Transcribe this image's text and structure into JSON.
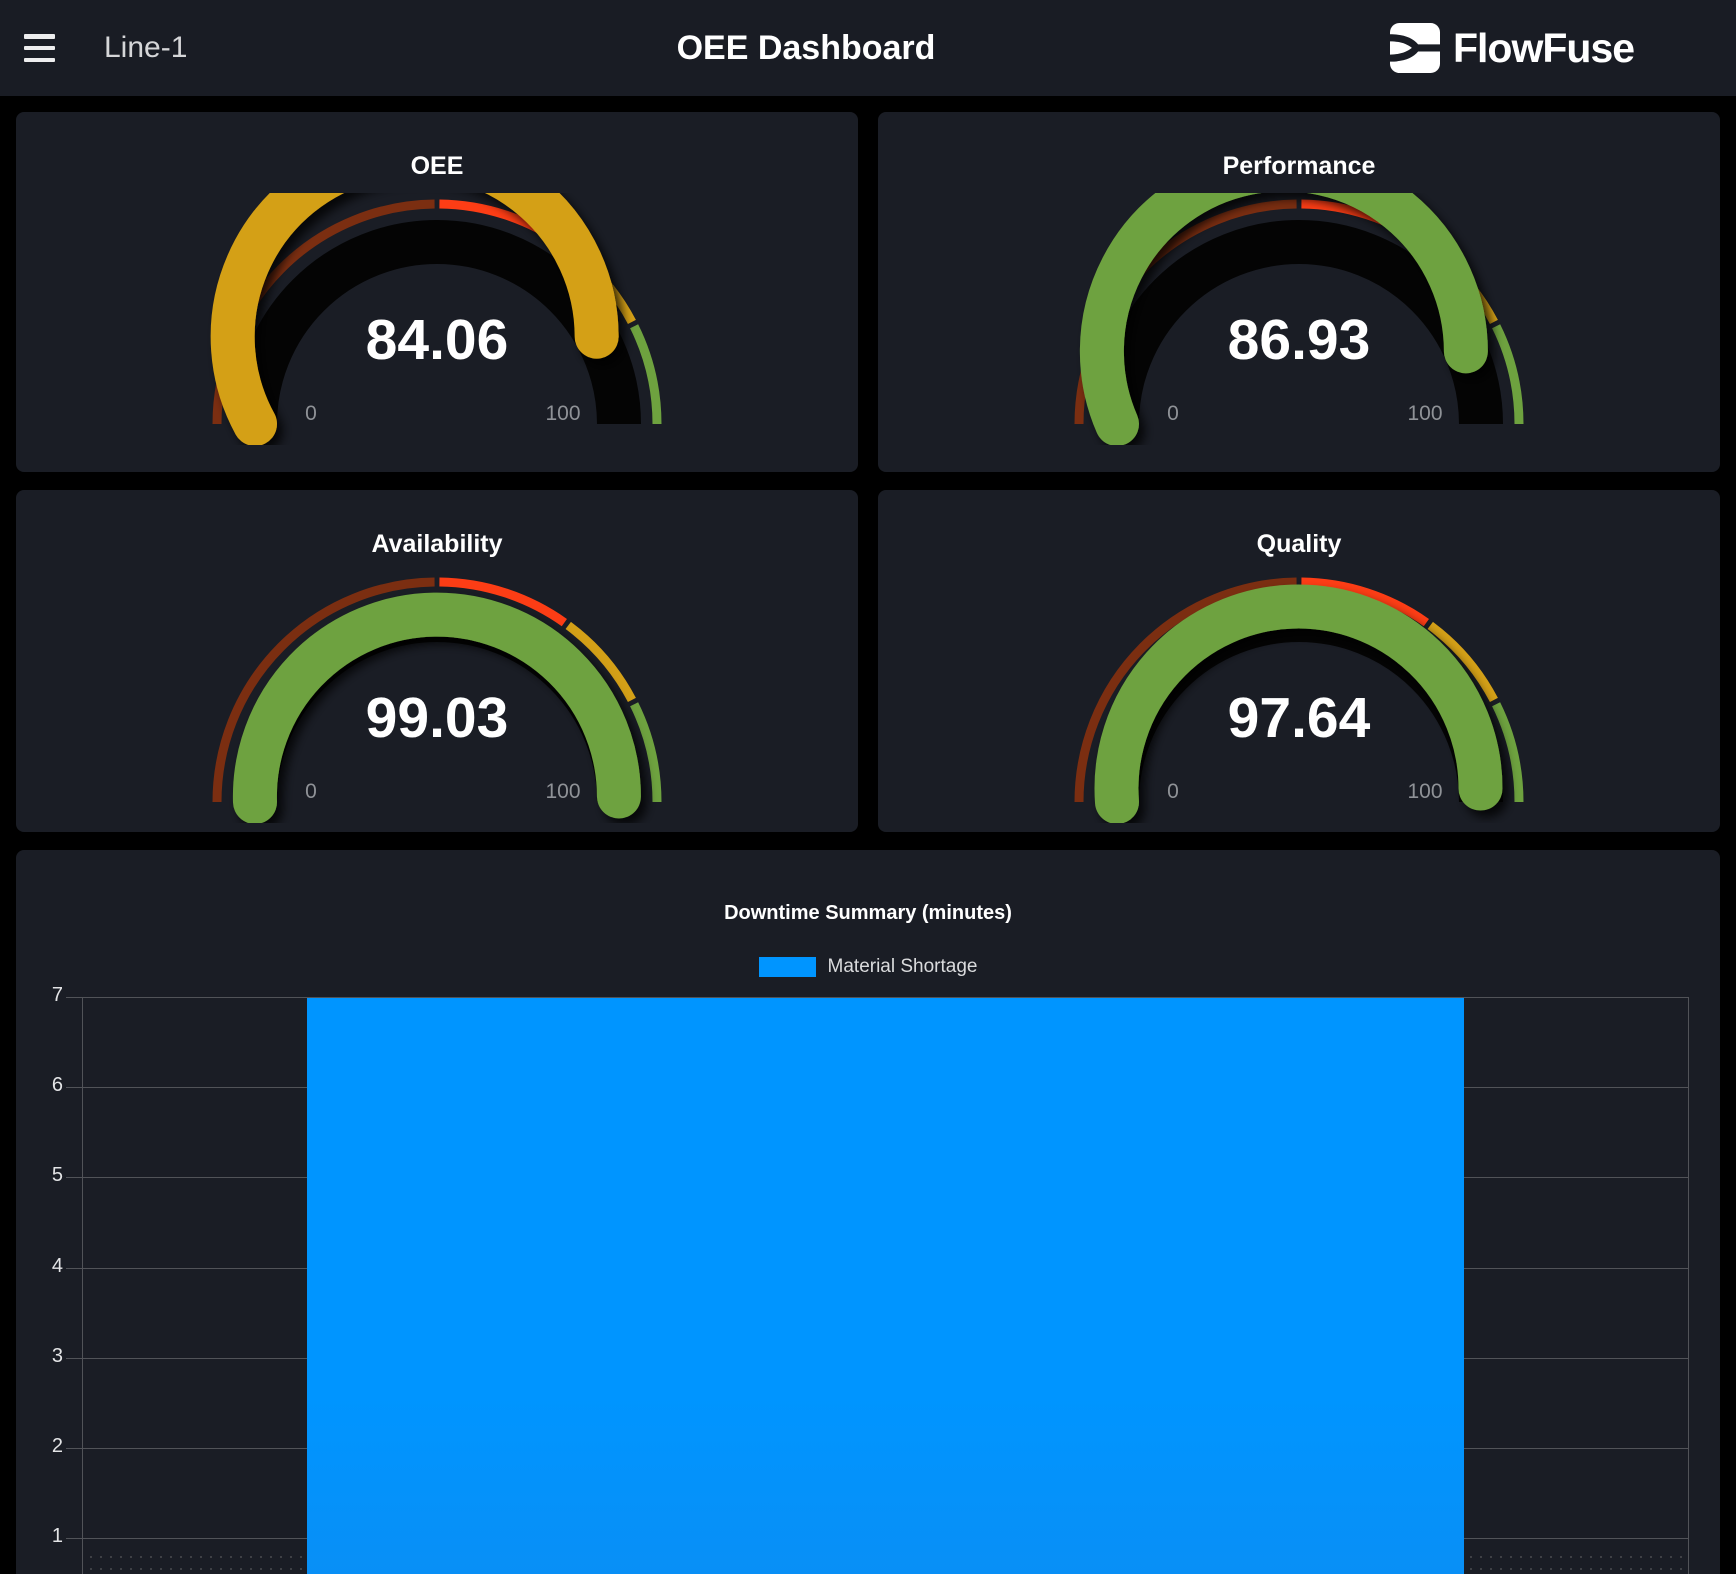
{
  "topbar": {
    "page_name": "Line-1",
    "title": "OEE Dashboard",
    "brand": "FlowFuse"
  },
  "theme": {
    "page_bg": "#000000",
    "bar_bg": "#191c24",
    "card_bg": "#1a1d25",
    "grid_color": "#515358",
    "tick_label_color": "#e3e4e6",
    "gauge_label_color": "#8f9297",
    "accent_blue": "#0095ff"
  },
  "gauge_segments": [
    {
      "from": 0,
      "to": 50,
      "color": "#7b2e11"
    },
    {
      "from": 50,
      "to": 70,
      "color": "#fd3d15"
    },
    {
      "from": 70,
      "to": 85,
      "color": "#d4a017"
    },
    {
      "from": 85,
      "to": 100,
      "color": "#6ea23f"
    }
  ],
  "gauges": [
    {
      "id": "oee",
      "title": "OEE",
      "value": 84.06,
      "display": "84.06",
      "fill": "#d4a017",
      "min_label": "0",
      "max_label": "100"
    },
    {
      "id": "performance",
      "title": "Performance",
      "value": 86.93,
      "display": "86.93",
      "fill": "#6ea23f",
      "min_label": "0",
      "max_label": "100"
    },
    {
      "id": "availability",
      "title": "Availability",
      "value": 99.03,
      "display": "99.03",
      "fill": "#6ea23f",
      "min_label": "0",
      "max_label": "100"
    },
    {
      "id": "quality",
      "title": "Quality",
      "value": 97.64,
      "display": "97.64",
      "fill": "#6ea23f",
      "min_label": "0",
      "max_label": "100"
    }
  ],
  "chart": {
    "title": "Downtime Summary (minutes)",
    "legend": [
      {
        "label": "Material Shortage",
        "color": "#0095ff"
      }
    ],
    "chart_data": {
      "type": "bar",
      "title": "Downtime Summary (minutes)",
      "categories": [
        ""
      ],
      "series": [
        {
          "name": "Material Shortage",
          "values": [
            7
          ],
          "color": "#0095ff"
        }
      ],
      "yticks": [
        1,
        2,
        3,
        4,
        5,
        6,
        7
      ],
      "ylim_top": 7,
      "grid": true,
      "legend_position": "top"
    }
  }
}
